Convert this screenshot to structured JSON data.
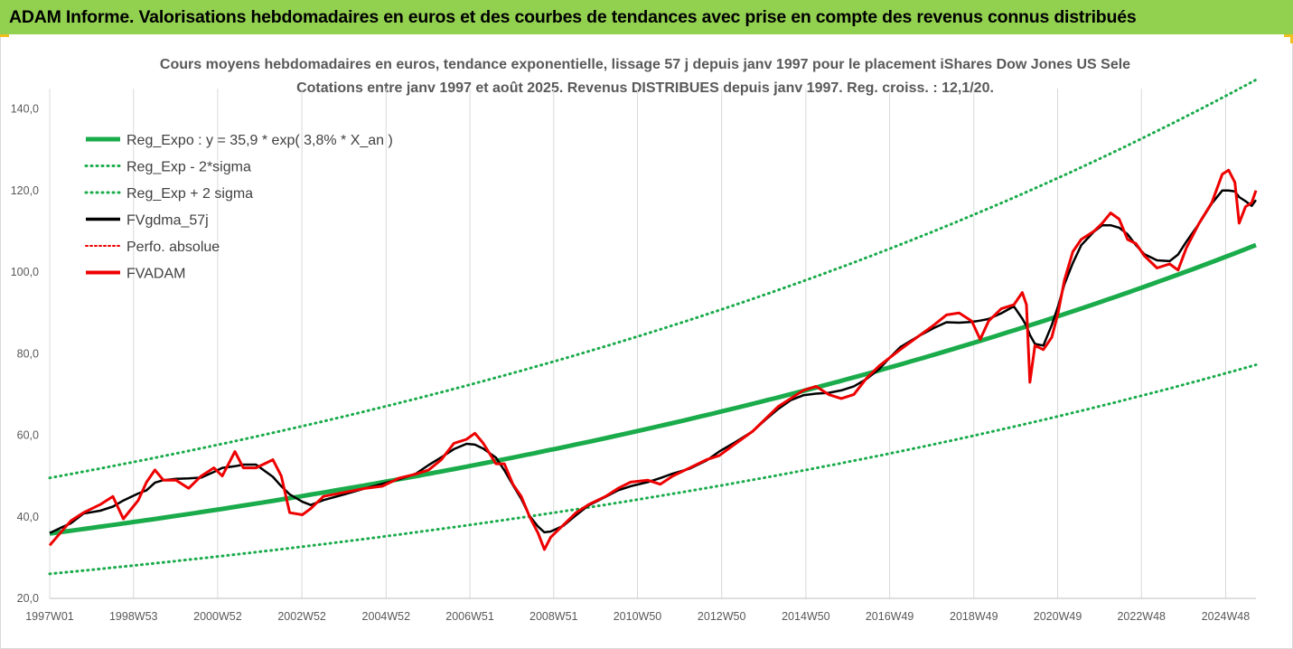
{
  "header": {
    "banner_text": "ADAM Informe. Valorisations hebdomadaires en euros et des courbes de tendances avec prise en compte des revenus connus distribués"
  },
  "colors": {
    "banner": "#92d050",
    "trend": "#1aab4b",
    "smoothed": "#000000",
    "price": "#ee0000",
    "grid": "#d9d9d9",
    "text": "#595959"
  },
  "chart_data": {
    "type": "line",
    "title_line1": "Cours moyens hebdomadaires en euros, tendance exponentielle, lissage 57 j depuis janv 1997  pour le placement iShares Dow Jones US Sele",
    "title_line2": "Cotations entre janv 1997 et août 2025. Revenus DISTRIBUES depuis janv 1997. Reg. croiss. : 12,1/20.",
    "xlabel": "",
    "ylabel": "",
    "ylim": [
      20,
      145
    ],
    "yticks": [
      "20,0",
      "40,0",
      "60,0",
      "80,0",
      "100,0",
      "120,0",
      "140,0"
    ],
    "x_range": [
      1997.0,
      2025.65
    ],
    "xticks": [
      {
        "label": "1997W01",
        "x": 1997.0
      },
      {
        "label": "1998W53",
        "x": 1998.99
      },
      {
        "label": "2000W52",
        "x": 2000.99
      },
      {
        "label": "2002W52",
        "x": 2002.99
      },
      {
        "label": "2004W52",
        "x": 2004.99
      },
      {
        "label": "2006W51",
        "x": 2006.98
      },
      {
        "label": "2008W51",
        "x": 2008.97
      },
      {
        "label": "2010W50",
        "x": 2010.96
      },
      {
        "label": "2012W50",
        "x": 2012.96
      },
      {
        "label": "2014W50",
        "x": 2014.96
      },
      {
        "label": "2016W49",
        "x": 2016.95
      },
      {
        "label": "2018W49",
        "x": 2018.95
      },
      {
        "label": "2020W49",
        "x": 2020.94
      },
      {
        "label": "2022W48",
        "x": 2022.93
      },
      {
        "label": "2024W48",
        "x": 2024.93
      }
    ],
    "grid": "vertical",
    "legend_position": "top-left",
    "regression": {
      "a": 35.9,
      "rate_percent": 3.8,
      "start_year": 1997.0,
      "sigma_factor": 1.38
    },
    "series": [
      {
        "name": "Reg_Expo : y = 35,9 * exp( 3,8% *  X_an )",
        "style": "solid-thick",
        "color": "#1aab4b"
      },
      {
        "name": "Reg_Exp - 2*sigma",
        "style": "dotted",
        "color": "#1aab4b"
      },
      {
        "name": "Reg_Exp + 2 sigma",
        "style": "dotted",
        "color": "#1aab4b"
      },
      {
        "name": "FVgdma_57j",
        "style": "solid",
        "color": "#000000"
      },
      {
        "name": "Perfo. absolue",
        "style": "dotted-thin",
        "color": "#ee0000"
      },
      {
        "name": "FVADAM",
        "style": "solid",
        "color": "#ee0000",
        "points": [
          [
            1997.0,
            33.0
          ],
          [
            1997.25,
            36.0
          ],
          [
            1997.5,
            39.0
          ],
          [
            1997.8,
            41.0
          ],
          [
            1998.2,
            43.0
          ],
          [
            1998.5,
            45.0
          ],
          [
            1998.75,
            39.5
          ],
          [
            1999.1,
            44.0
          ],
          [
            1999.3,
            48.5
          ],
          [
            1999.5,
            51.5
          ],
          [
            1999.7,
            49.0
          ],
          [
            2000.0,
            49.0
          ],
          [
            2000.3,
            47.0
          ],
          [
            2000.6,
            50.0
          ],
          [
            2000.9,
            52.0
          ],
          [
            2001.1,
            50.0
          ],
          [
            2001.4,
            56.0
          ],
          [
            2001.6,
            52.0
          ],
          [
            2001.9,
            52.0
          ],
          [
            2002.3,
            54.0
          ],
          [
            2002.5,
            50.0
          ],
          [
            2002.7,
            41.0
          ],
          [
            2003.0,
            40.5
          ],
          [
            2003.2,
            42.0
          ],
          [
            2003.5,
            45.0
          ],
          [
            2004.0,
            46.0
          ],
          [
            2004.5,
            47.0
          ],
          [
            2004.9,
            47.5
          ],
          [
            2005.3,
            49.5
          ],
          [
            2005.7,
            50.5
          ],
          [
            2006.0,
            51.5
          ],
          [
            2006.3,
            54.0
          ],
          [
            2006.6,
            58.0
          ],
          [
            2006.9,
            59.0
          ],
          [
            2007.1,
            60.5
          ],
          [
            2007.3,
            58.0
          ],
          [
            2007.6,
            53.0
          ],
          [
            2007.8,
            53.0
          ],
          [
            2008.0,
            48.0
          ],
          [
            2008.2,
            45.0
          ],
          [
            2008.4,
            40.0
          ],
          [
            2008.6,
            36.0
          ],
          [
            2008.75,
            32.0
          ],
          [
            2008.9,
            35.0
          ],
          [
            2009.2,
            38.0
          ],
          [
            2009.5,
            41.0
          ],
          [
            2009.8,
            43.0
          ],
          [
            2010.2,
            45.0
          ],
          [
            2010.5,
            47.0
          ],
          [
            2010.8,
            48.5
          ],
          [
            2011.2,
            49.0
          ],
          [
            2011.5,
            48.0
          ],
          [
            2011.8,
            50.0
          ],
          [
            2012.2,
            52.0
          ],
          [
            2012.6,
            54.0
          ],
          [
            2012.9,
            55.0
          ],
          [
            2013.3,
            58.0
          ],
          [
            2013.7,
            61.0
          ],
          [
            2014.0,
            64.0
          ],
          [
            2014.3,
            67.0
          ],
          [
            2014.6,
            69.0
          ],
          [
            2014.9,
            71.0
          ],
          [
            2015.2,
            72.0
          ],
          [
            2015.5,
            70.0
          ],
          [
            2015.8,
            69.0
          ],
          [
            2016.1,
            70.0
          ],
          [
            2016.4,
            74.0
          ],
          [
            2016.7,
            77.0
          ],
          [
            2016.95,
            79.0
          ],
          [
            2017.2,
            81.0
          ],
          [
            2017.6,
            84.0
          ],
          [
            2018.0,
            87.0
          ],
          [
            2018.3,
            89.5
          ],
          [
            2018.6,
            90.0
          ],
          [
            2018.9,
            88.0
          ],
          [
            2019.1,
            83.5
          ],
          [
            2019.3,
            88.0
          ],
          [
            2019.6,
            91.0
          ],
          [
            2019.9,
            92.0
          ],
          [
            2020.1,
            95.0
          ],
          [
            2020.2,
            92.0
          ],
          [
            2020.28,
            73.0
          ],
          [
            2020.4,
            82.0
          ],
          [
            2020.6,
            81.0
          ],
          [
            2020.8,
            84.0
          ],
          [
            2020.95,
            90.0
          ],
          [
            2021.1,
            98.0
          ],
          [
            2021.3,
            105.0
          ],
          [
            2021.5,
            108.0
          ],
          [
            2021.8,
            110.0
          ],
          [
            2022.0,
            112.0
          ],
          [
            2022.2,
            114.5
          ],
          [
            2022.4,
            113.0
          ],
          [
            2022.6,
            108.0
          ],
          [
            2022.8,
            107.0
          ],
          [
            2023.0,
            104.0
          ],
          [
            2023.3,
            101.0
          ],
          [
            2023.6,
            102.0
          ],
          [
            2023.8,
            100.5
          ],
          [
            2024.0,
            106.0
          ],
          [
            2024.3,
            112.0
          ],
          [
            2024.6,
            117.0
          ],
          [
            2024.85,
            124.0
          ],
          [
            2025.0,
            125.0
          ],
          [
            2025.15,
            122.0
          ],
          [
            2025.25,
            112.0
          ],
          [
            2025.4,
            116.0
          ],
          [
            2025.55,
            117.0
          ],
          [
            2025.65,
            120.0
          ]
        ]
      }
    ]
  }
}
